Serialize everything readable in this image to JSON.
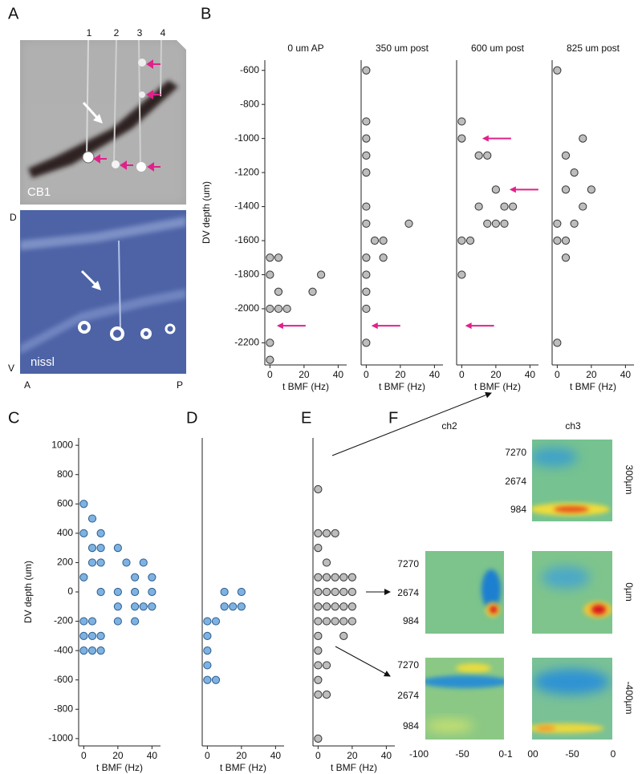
{
  "figure": {
    "panel_labels": [
      "A",
      "B",
      "C",
      "D",
      "E",
      "F"
    ],
    "panel_a": {
      "lanes": [
        "1",
        "2",
        "3",
        "4"
      ],
      "top_label": "CB1",
      "bottom_label": "nissl",
      "dorsal": "D",
      "ventral": "V",
      "anterior": "A",
      "posterior": "P"
    },
    "panel_f": {
      "columns": [
        "ch2",
        "ch3"
      ],
      "rows": [
        "300µm",
        "0µm",
        "-400µm"
      ],
      "yticks": [
        "7270",
        "2674",
        "984"
      ],
      "ch2_xticks": [
        "-100",
        "-50",
        "0-1"
      ],
      "ch3_xticks": [
        "00",
        "-50",
        "0"
      ]
    }
  },
  "chart_data": [
    {
      "type": "scatter",
      "title": "0 um AP",
      "ylabel": "DV depth (um)",
      "xlabel": "t BMF (Hz)",
      "color": "#bdbdbd",
      "x": [
        0,
        5,
        0,
        30,
        5,
        25,
        0,
        5,
        10,
        0,
        0
      ],
      "values": [
        -1700,
        -1700,
        -1800,
        -1800,
        -1900,
        -1900,
        -2000,
        -2000,
        -2000,
        -2200,
        -2300
      ],
      "arrows": [
        {
          "x": 4,
          "y": -2100
        }
      ],
      "xlim": [
        -3,
        45
      ],
      "xticks": [
        0,
        20,
        40
      ],
      "ylim": [
        -2330,
        -540
      ],
      "yticks": [
        -2200,
        -2000,
        -1800,
        -1600,
        -1400,
        -1200,
        -1000,
        -800,
        -600
      ]
    },
    {
      "type": "scatter",
      "title": "350 um post",
      "xlabel": "t BMF (Hz)",
      "color": "#bdbdbd",
      "x": [
        0,
        0,
        0,
        0,
        0,
        0,
        0,
        25,
        5,
        10,
        0,
        10,
        0,
        0,
        0,
        0
      ],
      "values": [
        -600,
        -900,
        -1000,
        -1100,
        -1200,
        -1400,
        -1500,
        -1500,
        -1600,
        -1600,
        -1700,
        -1700,
        -1800,
        -1900,
        -2000,
        -2200
      ],
      "arrows": [
        {
          "x": 3,
          "y": -2100
        }
      ],
      "xlim": [
        -3,
        45
      ],
      "xticks": [
        0,
        20,
        40
      ],
      "ylim": [
        -2330,
        -540
      ]
    },
    {
      "type": "scatter",
      "title": "600 um post",
      "xlabel": "t BMF (Hz)",
      "color": "#bdbdbd",
      "x": [
        0,
        0,
        10,
        15,
        20,
        10,
        25,
        30,
        15,
        20,
        25,
        0,
        5,
        0
      ],
      "values": [
        -900,
        -1000,
        -1100,
        -1100,
        -1300,
        -1400,
        -1400,
        -1400,
        -1500,
        -1500,
        -1500,
        -1600,
        -1600,
        -1800
      ],
      "arrows": [
        {
          "x": 12,
          "y": -1000
        },
        {
          "x": 28,
          "y": -1300
        },
        {
          "x": 2,
          "y": -2100
        }
      ],
      "xlim": [
        -3,
        45
      ],
      "xticks": [
        0,
        20,
        40
      ],
      "ylim": [
        -2330,
        -540
      ]
    },
    {
      "type": "scatter",
      "title": "825 um post",
      "xlabel": "t BMF (Hz)",
      "color": "#bdbdbd",
      "x": [
        0,
        15,
        5,
        10,
        5,
        20,
        15,
        0,
        10,
        0,
        5,
        5,
        0
      ],
      "values": [
        -600,
        -1000,
        -1100,
        -1200,
        -1300,
        -1300,
        -1400,
        -1500,
        -1500,
        -1600,
        -1600,
        -1700,
        -2200
      ],
      "xlim": [
        -3,
        45
      ],
      "xticks": [
        0,
        20,
        40
      ],
      "ylim": [
        -2330,
        -540
      ]
    },
    {
      "type": "scatter",
      "ylabel": "DV depth (um)",
      "xlabel": "t BMF (Hz)",
      "color": "#7fb2e0",
      "x": [
        0,
        5,
        0,
        10,
        5,
        10,
        20,
        5,
        10,
        25,
        35,
        0,
        30,
        40,
        10,
        20,
        30,
        40,
        20,
        30,
        35,
        40,
        0,
        5,
        20,
        30,
        0,
        5,
        10,
        0,
        5,
        10
      ],
      "values": [
        600,
        500,
        400,
        400,
        300,
        300,
        300,
        200,
        200,
        200,
        200,
        100,
        100,
        100,
        0,
        0,
        0,
        0,
        -100,
        -100,
        -100,
        -100,
        -200,
        -200,
        -200,
        -200,
        -300,
        -300,
        -300,
        -400,
        -400,
        -400
      ],
      "xlim": [
        -3,
        45
      ],
      "xticks": [
        0,
        20,
        40
      ],
      "ylim": [
        -1050,
        1050
      ],
      "yticks": [
        -1000,
        -800,
        -600,
        -400,
        -200,
        0,
        200,
        400,
        600,
        800,
        1000
      ]
    },
    {
      "type": "scatter",
      "xlabel": "t BMF (Hz)",
      "color": "#7fb2e0",
      "x": [
        10,
        20,
        10,
        15,
        20,
        0,
        5,
        0,
        0,
        0,
        0,
        5
      ],
      "values": [
        0,
        0,
        -100,
        -100,
        -100,
        -200,
        -200,
        -300,
        -400,
        -500,
        -600,
        -600
      ],
      "xlim": [
        -3,
        45
      ],
      "xticks": [
        0,
        20,
        40
      ],
      "ylim": [
        -1050,
        1050
      ]
    },
    {
      "type": "scatter",
      "xlabel": "t BMF (Hz)",
      "color": "#bdbdbd",
      "x": [
        0,
        0,
        5,
        10,
        0,
        5,
        0,
        5,
        10,
        15,
        20,
        0,
        5,
        10,
        15,
        20,
        0,
        5,
        10,
        15,
        20,
        0,
        5,
        10,
        15,
        20,
        0,
        15,
        0,
        0,
        5,
        0,
        0,
        5,
        0
      ],
      "values": [
        700,
        400,
        400,
        400,
        300,
        200,
        100,
        100,
        100,
        100,
        100,
        0,
        0,
        0,
        0,
        0,
        -100,
        -100,
        -100,
        -100,
        -100,
        -200,
        -200,
        -200,
        -200,
        -200,
        -300,
        -300,
        -400,
        -500,
        -500,
        -600,
        -700,
        -700,
        -1000
      ],
      "xlim": [
        -3,
        45
      ],
      "xticks": [
        0,
        20,
        40
      ],
      "ylim": [
        -1050,
        1050
      ]
    }
  ]
}
